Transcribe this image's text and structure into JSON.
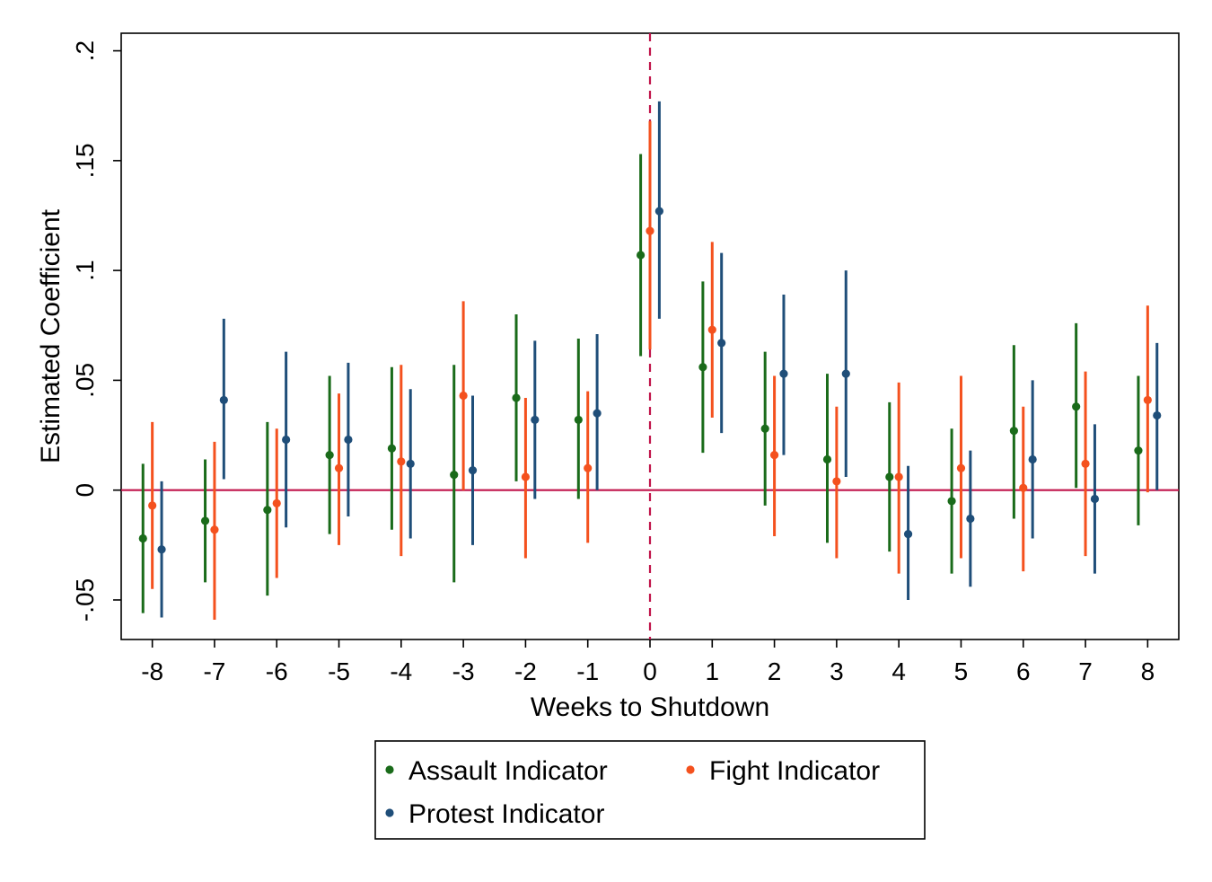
{
  "chart_data": {
    "type": "scatter",
    "title": "",
    "xlabel": "Weeks to Shutdown",
    "ylabel": "Estimated Coefficient",
    "categories": [
      "-8",
      "-7",
      "-6",
      "-5",
      "-4",
      "-3",
      "-2",
      "-1",
      "0",
      "1",
      "2",
      "3",
      "4",
      "5",
      "6",
      "7",
      "8"
    ],
    "x": [
      -8,
      -7,
      -6,
      -5,
      -4,
      -3,
      -2,
      -1,
      0,
      1,
      2,
      3,
      4,
      5,
      6,
      7,
      8
    ],
    "xlim": [
      -8.5,
      8.5
    ],
    "ylim": [
      -0.068,
      0.208
    ],
    "yticks": [
      -0.05,
      0,
      0.05,
      0.1,
      0.15,
      0.2
    ],
    "ytick_labels": [
      "-.05",
      "0",
      ".05",
      ".1",
      ".15",
      ".2"
    ],
    "reference_lines": {
      "horizontal_at_y": 0,
      "vertical_dashed_at_x": 0,
      "color": "#c0144a"
    },
    "series": [
      {
        "name": "Assault Indicator",
        "color": "#1a6b1a",
        "values": [
          -0.022,
          -0.014,
          -0.009,
          0.016,
          0.019,
          0.007,
          0.042,
          0.032,
          0.107,
          0.056,
          0.028,
          0.014,
          0.006,
          -0.005,
          0.027,
          0.038,
          0.018
        ],
        "ci_low": [
          -0.056,
          -0.042,
          -0.048,
          -0.02,
          -0.018,
          -0.042,
          0.004,
          -0.004,
          0.061,
          0.017,
          -0.007,
          -0.024,
          -0.028,
          -0.038,
          -0.013,
          0.001,
          -0.016
        ],
        "ci_high": [
          0.012,
          0.014,
          0.031,
          0.052,
          0.056,
          0.057,
          0.08,
          0.069,
          0.153,
          0.095,
          0.063,
          0.053,
          0.04,
          0.028,
          0.066,
          0.076,
          0.052
        ]
      },
      {
        "name": "Fight Indicator",
        "color": "#f4511e",
        "values": [
          -0.007,
          -0.018,
          -0.006,
          0.01,
          0.013,
          0.043,
          0.006,
          0.01,
          0.118,
          0.073,
          0.016,
          0.004,
          0.006,
          0.01,
          0.001,
          0.012,
          0.041
        ],
        "ci_low": [
          -0.045,
          -0.059,
          -0.04,
          -0.025,
          -0.03,
          0.0,
          -0.031,
          -0.024,
          0.064,
          0.033,
          -0.021,
          -0.031,
          -0.038,
          -0.031,
          -0.037,
          -0.03,
          -0.001
        ],
        "ci_high": [
          0.031,
          0.022,
          0.028,
          0.044,
          0.057,
          0.086,
          0.042,
          0.045,
          0.168,
          0.113,
          0.052,
          0.038,
          0.049,
          0.052,
          0.038,
          0.054,
          0.084
        ]
      },
      {
        "name": "Protest Indicator",
        "color": "#1f4e79",
        "values": [
          -0.027,
          0.041,
          0.023,
          0.023,
          0.012,
          0.009,
          0.032,
          0.035,
          0.127,
          0.067,
          0.053,
          0.053,
          -0.02,
          -0.013,
          0.014,
          -0.004,
          0.034
        ],
        "ci_low": [
          -0.058,
          0.005,
          -0.017,
          -0.012,
          -0.022,
          -0.025,
          -0.004,
          0.0,
          0.078,
          0.026,
          0.016,
          0.006,
          -0.05,
          -0.044,
          -0.022,
          -0.038,
          0.0
        ],
        "ci_high": [
          0.004,
          0.078,
          0.063,
          0.058,
          0.046,
          0.043,
          0.068,
          0.071,
          0.177,
          0.108,
          0.089,
          0.1,
          0.011,
          0.018,
          0.05,
          0.03,
          0.067
        ]
      }
    ],
    "legend": {
      "placement": "bottom",
      "entries": [
        "Assault Indicator",
        "Fight Indicator",
        "Protest Indicator"
      ]
    },
    "grid": false
  }
}
